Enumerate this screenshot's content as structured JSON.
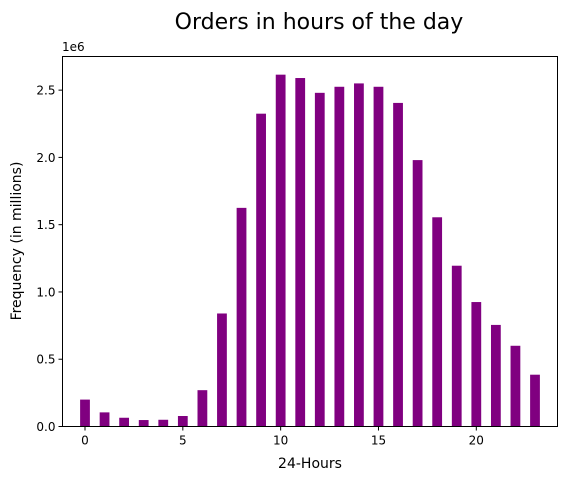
{
  "chart_data": {
    "type": "bar",
    "title": "Orders in hours of the day",
    "xlabel": "24-Hours",
    "ylabel": "Frequency (in millions)",
    "y_offset_label": "1e6",
    "x": [
      0,
      1,
      2,
      3,
      4,
      5,
      6,
      7,
      8,
      9,
      10,
      11,
      12,
      13,
      14,
      15,
      16,
      17,
      18,
      19,
      20,
      21,
      22,
      23
    ],
    "values": [
      200000,
      105000,
      65000,
      48000,
      50000,
      78000,
      270000,
      840000,
      1625000,
      2325000,
      2615000,
      2590000,
      2480000,
      2525000,
      2550000,
      2525000,
      2405000,
      1980000,
      1555000,
      1195000,
      925000,
      755000,
      600000,
      385000
    ],
    "xticks": [
      0,
      5,
      10,
      15,
      20
    ],
    "xtick_labels": [
      "0",
      "5",
      "10",
      "15",
      "20"
    ],
    "yticks": [
      0,
      500000,
      1000000,
      1500000,
      2000000,
      2500000
    ],
    "ytick_labels": [
      "0.0",
      "0.5",
      "1.0",
      "1.5",
      "2.0",
      "2.5"
    ],
    "xlim": [
      -1.15,
      24.15
    ],
    "ylim": [
      0,
      2750000
    ],
    "bar_color": "#800080",
    "grid": false
  }
}
